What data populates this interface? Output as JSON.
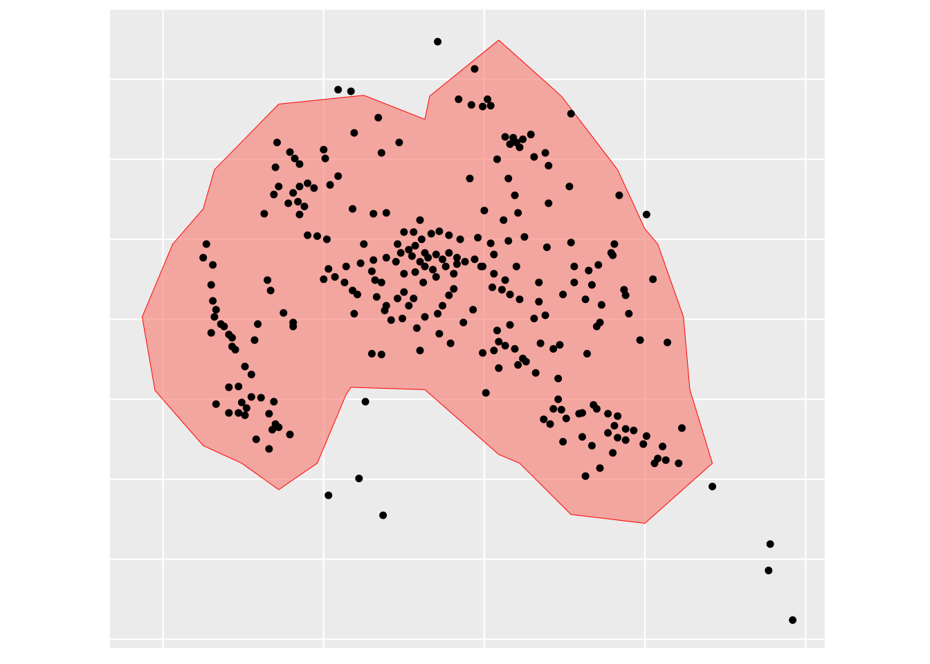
{
  "chart_data": {
    "type": "scatter",
    "x": [
      17.1,
      19.4,
      25.4,
      30.1,
      30.5,
      34.2,
      37.8,
      37.7,
      39.2,
      10.3,
      12.2,
      13.7,
      12.6,
      20.1,
      10.9,
      11.7,
      18.4,
      19.2,
      19.9,
      20.2,
      20.4,
      13.4,
      11.9,
      14.7,
      13.6,
      7.1,
      7.9,
      8.2,
      7.0,
      8.5,
      10.0,
      10.1,
      10.9,
      10.4,
      9.0,
      9.4,
      7.2,
      6.9,
      8.1,
      8.5,
      7.8,
      8.4,
      8.8,
      8.5,
      6.3,
      11.8,
      21.3,
      21.6,
      22.0,
      22.4,
      22.9,
      21.8,
      22.2,
      20.8,
      23.1,
      23.8,
      24.0,
      21.5,
      19.1,
      25.3,
      28.4,
      21.9,
      24.0,
      20.0,
      22.1,
      21.2,
      16.0,
      13.9,
      13.1,
      2.7,
      2.5,
      3.1,
      3.0,
      3.1,
      3.3,
      3.2,
      3.6,
      3.8,
      3.0,
      4.1,
      4.3,
      4.3,
      4.5,
      5.1,
      5.5,
      4.7,
      4.1,
      3.3,
      4.1,
      4.7,
      4.9,
      5.2,
      5.1,
      5.5,
      6.1,
      6.9,
      6.6,
      7.0,
      7.2,
      6.8,
      7.9,
      5.8,
      6.6,
      6.5,
      6.7,
      5.9,
      5.7,
      7.5,
      8.1,
      8.1,
      9.0,
      9.6,
      10.2,
      12.5,
      15.0,
      15.6,
      16.1,
      16.7,
      17.2,
      17.8,
      18.5,
      19.6,
      14.6,
      15.3,
      15.7,
      16.3,
      16.5,
      17.0,
      17.4,
      17.8,
      18.3,
      18.8,
      19.4,
      19.9,
      20.4,
      20.6,
      21.5,
      22.5,
      23.9,
      25.4,
      16.0,
      15.5,
      14.8,
      16.8,
      16.3,
      17.6,
      18.3,
      17.0,
      18.1,
      16.2,
      15.7,
      15.0,
      14.5,
      13.9,
      13.1,
      13.0,
      12.3,
      11.4,
      10.3,
      10.0,
      10.7,
      11.3,
      11.8,
      12.1,
      11.9,
      13.2,
      13.6,
      13.3,
      13.9,
      13.8,
      14.2,
      14.9,
      14.6,
      15.0,
      15.6,
      15.3,
      16.3,
      15.8,
      17.1,
      17.4,
      17.8,
      18.1,
      18.7,
      17.2,
      17.9,
      19.3,
      16.0,
      13.0,
      13.6,
      19.8,
      20.6,
      21.3,
      20.5,
      21.1,
      21.6,
      22.2,
      22.0,
      23.4,
      23.4,
      23.8,
      23.1,
      21.6,
      20.8,
      20.9,
      20.6,
      19.9,
      21.3,
      21.9,
      22.4,
      22.6,
      22.1,
      20.9,
      23.2,
      23.5,
      24.7,
      24.3,
      24.6,
      26.4,
      25.6,
      26.5,
      27.1,
      28.1,
      27.9,
      28.0,
      25.6,
      24.9,
      26.3,
      26.7,
      27.3,
      28.7,
      28.8,
      29.0,
      27.2,
      27.0,
      29.7,
      31.4,
      24.6,
      24.3,
      24.8,
      23.7,
      24.1,
      25.1,
      25.9,
      26.1,
      26.8,
      27.0,
      27.7,
      28.3,
      28.1,
      27.7,
      28.3,
      28.8,
      29.3,
      28.8,
      30.1,
      29.9,
      31.1,
      30.8,
      31.3,
      30.6,
      32.1,
      32.3,
      24.9,
      26.1,
      26.7,
      28.0,
      27.2,
      26.3
    ],
    "values": [
      74.7,
      71.3,
      65.7,
      53.1,
      45.0,
      19.1,
      11.9,
      8.6,
      2.4,
      18.0,
      20.1,
      15.5,
      29.7,
      30.8,
      68.7,
      68.5,
      67.5,
      66.8,
      66.6,
      67.5,
      66.7,
      65.2,
      63.3,
      62.1,
      60.8,
      62.1,
      60.9,
      60.1,
      59.0,
      59.4,
      61.2,
      60.1,
      57.9,
      56.8,
      57.0,
      56.4,
      56.6,
      55.6,
      55.8,
      56.6,
      54.5,
      54.7,
      54.1,
      53.1,
      53.2,
      53.8,
      62.8,
      61.9,
      62.1,
      62.5,
      63.1,
      62.7,
      61.5,
      60.0,
      60.3,
      60.8,
      59.2,
      57.6,
      57.6,
      56.6,
      55.5,
      55.5,
      54.5,
      53.6,
      53.3,
      52.4,
      52.4,
      53.3,
      53.2,
      49.4,
      47.7,
      46.8,
      44.3,
      42.3,
      41.2,
      40.3,
      39.4,
      39.1,
      38.3,
      38.1,
      37.7,
      36.6,
      36.2,
      34.1,
      33.1,
      31.6,
      31.5,
      29.4,
      28.3,
      28.3,
      29.6,
      28.9,
      28.0,
      30.3,
      30.2,
      29.7,
      28.2,
      26.9,
      26.5,
      26.2,
      25.6,
      25.0,
      23.8,
      44.9,
      43.6,
      39.4,
      37.4,
      40.8,
      39.6,
      39.1,
      50.5,
      50.4,
      50.0,
      49.4,
      50.9,
      50.9,
      50.0,
      50.7,
      51.0,
      50.5,
      50.0,
      50.2,
      49.4,
      48.7,
      49.2,
      48.3,
      47.7,
      48.1,
      47.5,
      48.3,
      47.7,
      47.2,
      47.5,
      46.6,
      49.5,
      48.1,
      49.8,
      50.3,
      49.0,
      49.6,
      47.2,
      47.9,
      48.3,
      46.2,
      46.6,
      46.6,
      46.9,
      45.3,
      45.7,
      44.6,
      45.9,
      45.7,
      47.2,
      47.7,
      47.4,
      46.0,
      47.0,
      46.6,
      46.3,
      45.0,
      45.3,
      44.6,
      43.6,
      43.1,
      40.7,
      44.9,
      44.6,
      42.8,
      41.7,
      41.1,
      39.9,
      40.1,
      42.6,
      43.4,
      42.6,
      41.7,
      40.3,
      38.9,
      40.7,
      41.7,
      43.0,
      43.8,
      39.6,
      38.2,
      37.0,
      41.2,
      36.1,
      35.7,
      35.6,
      46.6,
      45.7,
      44.9,
      44.0,
      43.7,
      43.1,
      42.5,
      46.6,
      44.6,
      42.2,
      40.5,
      40.1,
      39.3,
      38.6,
      37.2,
      36.1,
      35.8,
      36.7,
      36.3,
      35.1,
      34.7,
      34.3,
      33.9,
      33.3,
      37.0,
      36.8,
      36.3,
      32.6,
      35.7,
      46.6,
      46.1,
      46.8,
      49.4,
      48.3,
      48.0,
      44.6,
      43.1,
      42.5,
      44.3,
      41.8,
      43.7,
      43.0,
      40.7,
      39.6,
      39.1,
      37.4,
      37.1,
      30.0,
      28.8,
      28.7,
      27.5,
      26.9,
      27.6,
      28.2,
      28.3,
      29.3,
      28.8,
      28.2,
      27.9,
      26.7,
      25.8,
      25.2,
      26.3,
      26.1,
      24.9,
      25.4,
      24.4,
      24.1,
      22.6,
      22.4,
      22.0,
      22.0,
      26.4,
      24.7,
      25.3,
      24.2,
      23.3,
      21.4,
      20.4
    ],
    "color": "#000000",
    "hull": {
      "x": [
        20.9,
        24.8,
        28.3,
        30.0,
        30.8,
        32.4,
        32.8,
        34.2,
        30.0,
        25.4,
        22.2,
        20.9,
        16.3,
        11.7,
        11.4,
        9.6,
        7.2,
        4.9,
        2.5,
        -0.5,
        -1.3,
        0.6,
        2.5,
        3.2,
        7.2,
        12.5,
        16.3,
        16.6
      ],
      "y": [
        74.9,
        67.9,
        58.7,
        51.3,
        49.4,
        40.3,
        31.2,
        22.0,
        14.5,
        15.6,
        22.0,
        23.1,
        31.2,
        31.5,
        30.6,
        22.0,
        18.7,
        22.0,
        24.2,
        31.1,
        40.3,
        49.4,
        53.8,
        58.7,
        66.9,
        68.0,
        65.0,
        67.9
      ],
      "fill": "#f8766d",
      "stroke": "#ff0000"
    },
    "xlim": [
      -3.3,
      41.2
    ],
    "ylim": [
      -1.1,
      78.7
    ],
    "xticks": [
      0,
      10,
      20,
      30,
      40
    ],
    "yticks": [
      0,
      10,
      20,
      30,
      40,
      50,
      60,
      70
    ],
    "grid": true
  }
}
